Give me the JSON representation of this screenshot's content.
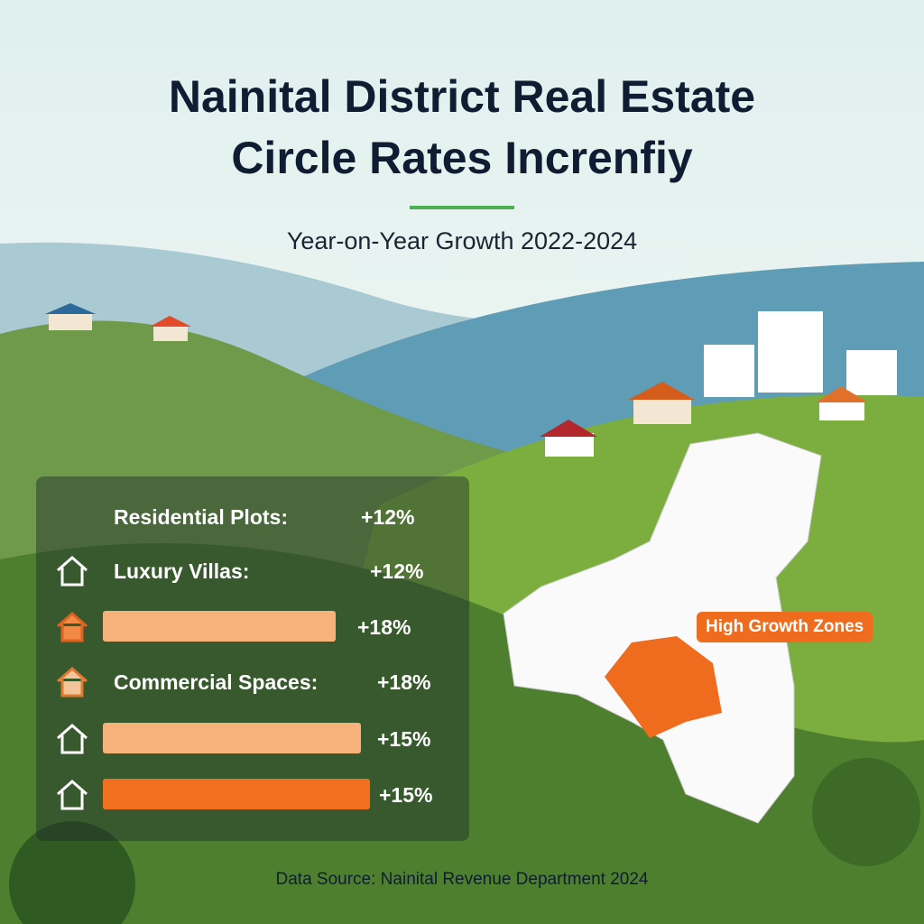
{
  "header": {
    "title": [
      "Nainital District Real Estate",
      "Circle Rates Increnfiy"
    ],
    "subtitle": "Year-on-Year Growth 2022-2024"
  },
  "rows": [
    {
      "label": "Residential Plots:",
      "value": "+12%"
    },
    {
      "label": "Luxury Villas:",
      "value": "+12%"
    },
    {
      "label": null,
      "value": "+18%"
    },
    {
      "label": "Commercial Spaces:",
      "value": "+18%"
    },
    {
      "label": null,
      "value": "+15%"
    },
    {
      "label": null,
      "value": "+15%"
    }
  ],
  "map": {
    "label": "High Growth Zones"
  },
  "footer": {
    "source": "Data Source: Nainital Revenue Department 2024"
  }
}
